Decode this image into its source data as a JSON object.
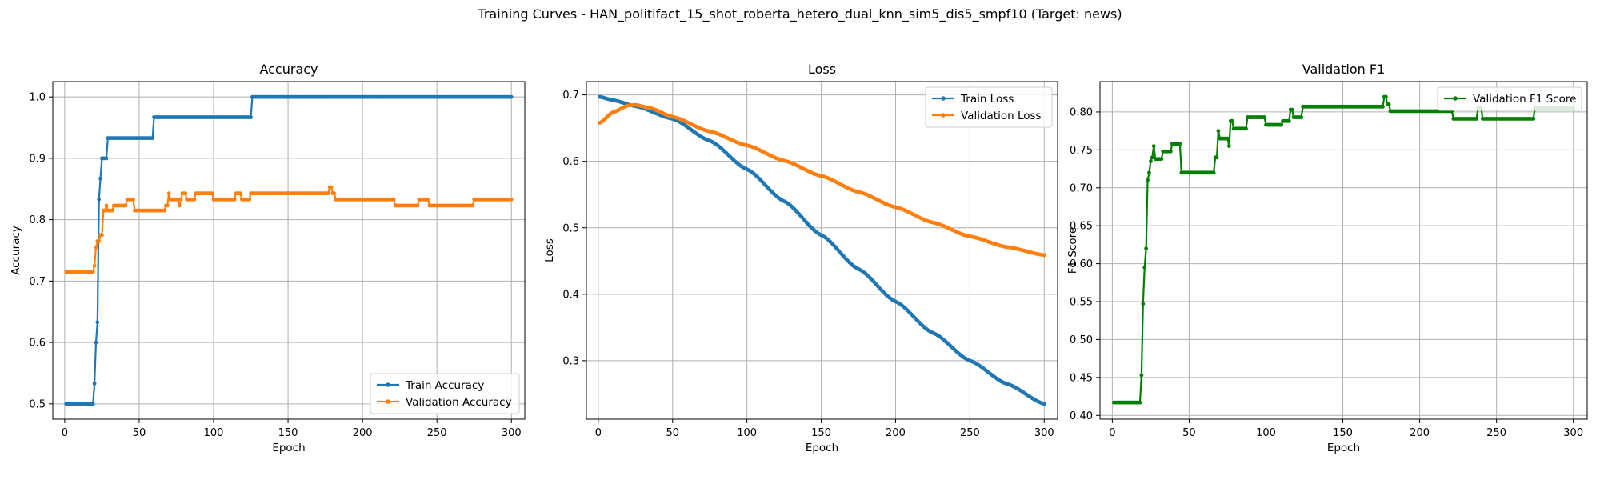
{
  "suptitle": "Training Curves - HAN_politifact_15_shot_roberta_hetero_dual_knn_sim5_dis5_smpf10 (Target: news)",
  "colors": {
    "blue": "#1f77b4",
    "orange": "#ff7f0e",
    "green": "#008000",
    "grid": "#b0b0b0"
  },
  "chart_data": [
    {
      "type": "line",
      "title": "Accuracy",
      "xlabel": "Epoch",
      "ylabel": "Accuracy",
      "xlim": [
        -8,
        309
      ],
      "ylim": [
        0.475,
        1.025
      ],
      "xticks": [
        0,
        50,
        100,
        150,
        200,
        250,
        300
      ],
      "yticks": [
        0.5,
        0.6,
        0.7,
        0.8,
        0.9,
        1.0
      ],
      "ytick_labels": [
        "0.5",
        "0.6",
        "0.7",
        "0.8",
        "0.9",
        "1.0"
      ],
      "grid": true,
      "legend_position": "lower-right",
      "epochs": [
        1,
        300
      ],
      "series": [
        {
          "name": "Train Accuracy",
          "color": "#1f77b4",
          "steps": [
            [
              1,
              0.5
            ],
            [
              19,
              0.5
            ],
            [
              20,
              0.533
            ],
            [
              21,
              0.6
            ],
            [
              22,
              0.633
            ],
            [
              23,
              0.833
            ],
            [
              24,
              0.867
            ],
            [
              25,
              0.9
            ],
            [
              29,
              0.933
            ],
            [
              60,
              0.967
            ],
            [
              126,
              1.0
            ],
            [
              300,
              1.0
            ]
          ]
        },
        {
          "name": "Validation Accuracy",
          "color": "#ff7f0e",
          "steps": [
            [
              1,
              0.715
            ],
            [
              19,
              0.715
            ],
            [
              20,
              0.725
            ],
            [
              21,
              0.755
            ],
            [
              22,
              0.765
            ],
            [
              24,
              0.775
            ],
            [
              26,
              0.815
            ],
            [
              28,
              0.823
            ],
            [
              29,
              0.815
            ],
            [
              33,
              0.823
            ],
            [
              42,
              0.833
            ],
            [
              47,
              0.815
            ],
            [
              68,
              0.823
            ],
            [
              70,
              0.843
            ],
            [
              71,
              0.833
            ],
            [
              77,
              0.823
            ],
            [
              78,
              0.833
            ],
            [
              79,
              0.843
            ],
            [
              82,
              0.833
            ],
            [
              88,
              0.843
            ],
            [
              100,
              0.833
            ],
            [
              115,
              0.843
            ],
            [
              119,
              0.833
            ],
            [
              125,
              0.843
            ],
            [
              178,
              0.853
            ],
            [
              180,
              0.843
            ],
            [
              182,
              0.833
            ],
            [
              222,
              0.823
            ],
            [
              238,
              0.833
            ],
            [
              245,
              0.823
            ],
            [
              275,
              0.833
            ],
            [
              300,
              0.833
            ]
          ]
        }
      ]
    },
    {
      "type": "line",
      "title": "Loss",
      "xlabel": "Epoch",
      "ylabel": "Loss",
      "xlim": [
        -8,
        309
      ],
      "ylim": [
        0.212,
        0.72
      ],
      "xticks": [
        0,
        50,
        100,
        150,
        200,
        250,
        300
      ],
      "yticks": [
        0.3,
        0.4,
        0.5,
        0.6,
        0.7
      ],
      "ytick_labels": [
        "0.3",
        "0.4",
        "0.5",
        "0.6",
        "0.7"
      ],
      "grid": true,
      "legend_position": "upper-right",
      "epochs": [
        1,
        300
      ],
      "series": [
        {
          "name": "Train Loss",
          "color": "#1f77b4",
          "curve": [
            [
              1,
              0.697
            ],
            [
              10,
              0.692
            ],
            [
              25,
              0.683
            ],
            [
              50,
              0.664
            ],
            [
              75,
              0.631
            ],
            [
              100,
              0.588
            ],
            [
              125,
              0.54
            ],
            [
              150,
              0.489
            ],
            [
              175,
              0.438
            ],
            [
              200,
              0.389
            ],
            [
              225,
              0.342
            ],
            [
              250,
              0.3
            ],
            [
              275,
              0.265
            ],
            [
              300,
              0.235
            ]
          ]
        },
        {
          "name": "Validation Loss",
          "color": "#ff7f0e",
          "curve": [
            [
              1,
              0.658
            ],
            [
              10,
              0.674
            ],
            [
              20,
              0.684
            ],
            [
              25,
              0.685
            ],
            [
              35,
              0.68
            ],
            [
              50,
              0.667
            ],
            [
              75,
              0.645
            ],
            [
              100,
              0.624
            ],
            [
              125,
              0.601
            ],
            [
              150,
              0.578
            ],
            [
              175,
              0.554
            ],
            [
              200,
              0.531
            ],
            [
              225,
              0.508
            ],
            [
              250,
              0.487
            ],
            [
              275,
              0.471
            ],
            [
              300,
              0.459
            ]
          ]
        }
      ]
    },
    {
      "type": "line",
      "title": "Validation F1",
      "xlabel": "Epoch",
      "ylabel": "F1 Score",
      "xlim": [
        -8,
        309
      ],
      "ylim": [
        0.395,
        0.84
      ],
      "xticks": [
        0,
        50,
        100,
        150,
        200,
        250,
        300
      ],
      "yticks": [
        0.4,
        0.45,
        0.5,
        0.55,
        0.6,
        0.65,
        0.7,
        0.75,
        0.8
      ],
      "ytick_labels": [
        "0.40",
        "0.45",
        "0.50",
        "0.55",
        "0.60",
        "0.65",
        "0.70",
        "0.75",
        "0.80"
      ],
      "grid": true,
      "legend_position": "upper-right",
      "epochs": [
        1,
        300
      ],
      "series": [
        {
          "name": "Validation F1 Score",
          "color": "#008000",
          "steps": [
            [
              1,
              0.417
            ],
            [
              18,
              0.417
            ],
            [
              19,
              0.453
            ],
            [
              20,
              0.547
            ],
            [
              21,
              0.595
            ],
            [
              22,
              0.62
            ],
            [
              23,
              0.71
            ],
            [
              24,
              0.72
            ],
            [
              25,
              0.735
            ],
            [
              26,
              0.74
            ],
            [
              27,
              0.755
            ],
            [
              28,
              0.738
            ],
            [
              33,
              0.748
            ],
            [
              39,
              0.758
            ],
            [
              45,
              0.72
            ],
            [
              67,
              0.74
            ],
            [
              69,
              0.775
            ],
            [
              70,
              0.765
            ],
            [
              76,
              0.755
            ],
            [
              77,
              0.788
            ],
            [
              79,
              0.778
            ],
            [
              88,
              0.793
            ],
            [
              100,
              0.783
            ],
            [
              111,
              0.788
            ],
            [
              116,
              0.803
            ],
            [
              118,
              0.793
            ],
            [
              124,
              0.807
            ],
            [
              177,
              0.82
            ],
            [
              179,
              0.81
            ],
            [
              181,
              0.801
            ],
            [
              222,
              0.791
            ],
            [
              238,
              0.805
            ],
            [
              241,
              0.791
            ],
            [
              275,
              0.805
            ],
            [
              300,
              0.805
            ]
          ]
        }
      ]
    }
  ]
}
